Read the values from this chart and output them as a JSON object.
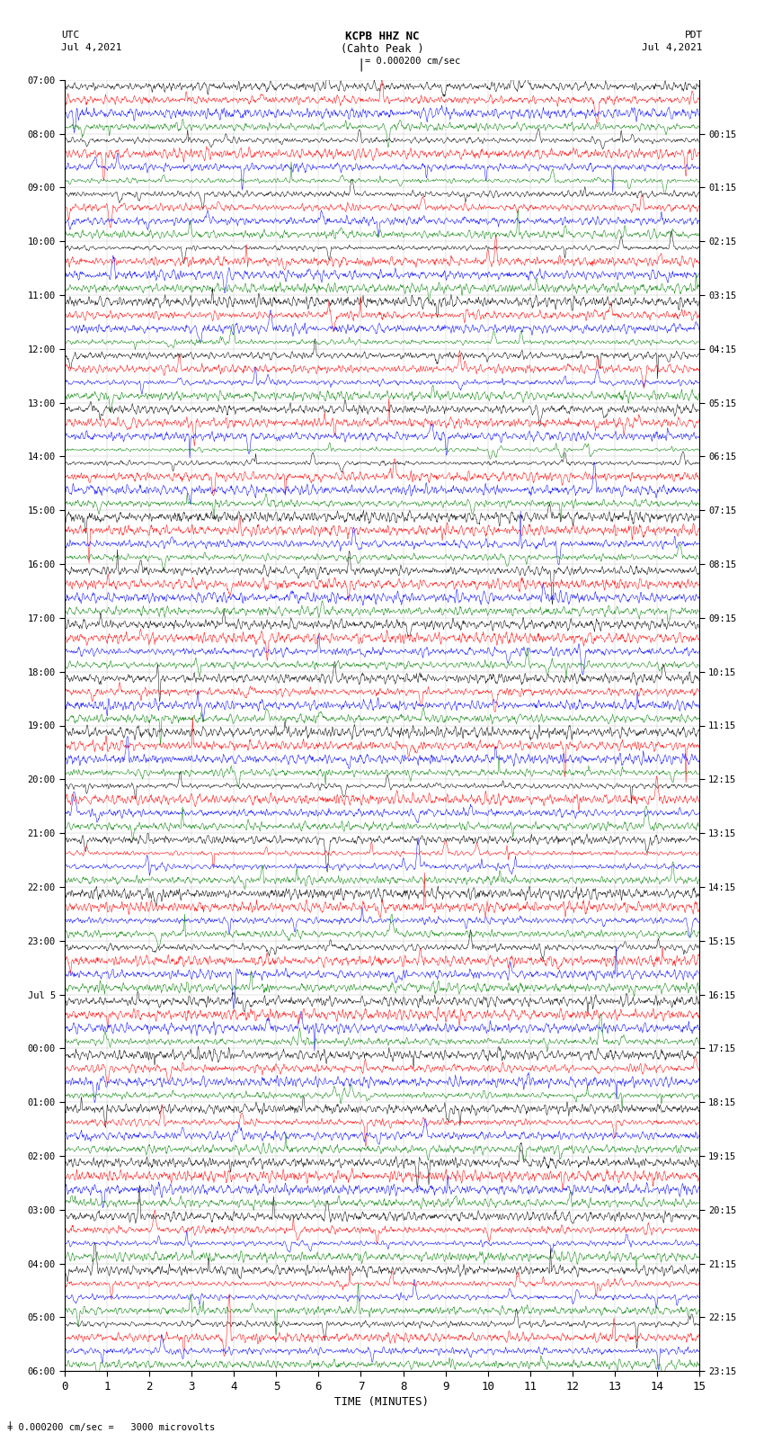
{
  "title_line1": "KCPB HHZ NC",
  "title_line2": "(Cahto Peak )",
  "scale_label": "= 0.000200 cm/sec",
  "bottom_label": "= 0.000200 cm/sec =   3000 microvolts",
  "xlabel": "TIME (MINUTES)",
  "left_date": "Jul 4,2021",
  "right_date": "Jul 4,2021",
  "left_tz": "UTC",
  "right_tz": "PDT",
  "colors": [
    "black",
    "red",
    "blue",
    "green"
  ],
  "bg_color": "white",
  "fig_width": 8.5,
  "fig_height": 16.13,
  "dpi": 100,
  "left_label_times_utc": [
    "07:00",
    "08:00",
    "09:00",
    "10:00",
    "11:00",
    "12:00",
    "13:00",
    "14:00",
    "15:00",
    "16:00",
    "17:00",
    "18:00",
    "19:00",
    "20:00",
    "21:00",
    "22:00",
    "23:00",
    "Jul 5",
    "00:00",
    "01:00",
    "02:00",
    "03:00",
    "04:00",
    "05:00",
    "06:00"
  ],
  "right_label_times_pdt": [
    "00:15",
    "01:15",
    "02:15",
    "03:15",
    "04:15",
    "05:15",
    "06:15",
    "07:15",
    "08:15",
    "09:15",
    "10:15",
    "11:15",
    "12:15",
    "13:15",
    "14:15",
    "15:15",
    "16:15",
    "17:15",
    "18:15",
    "19:15",
    "20:15",
    "21:15",
    "22:15",
    "23:15"
  ],
  "num_groups": 96,
  "traces_per_group": 4,
  "xmin": 0,
  "xmax": 15,
  "xticks": [
    0,
    1,
    2,
    3,
    4,
    5,
    6,
    7,
    8,
    9,
    10,
    11,
    12,
    13,
    14,
    15
  ]
}
